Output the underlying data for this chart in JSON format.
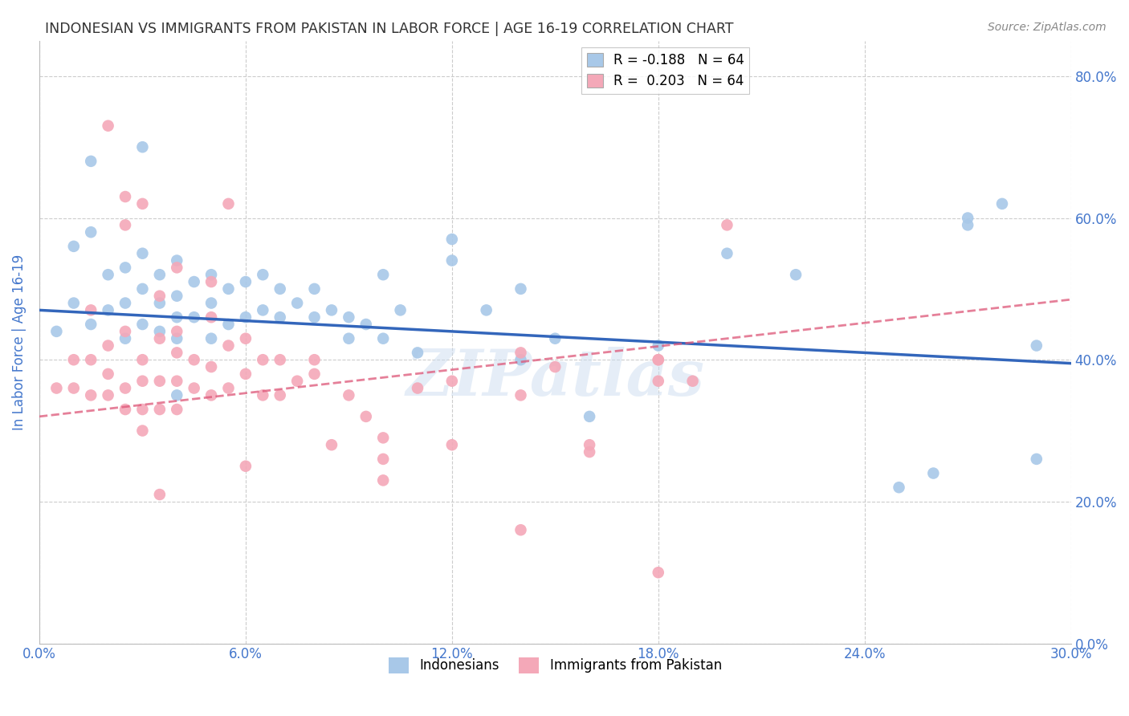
{
  "title": "INDONESIAN VS IMMIGRANTS FROM PAKISTAN IN LABOR FORCE | AGE 16-19 CORRELATION CHART",
  "source": "Source: ZipAtlas.com",
  "ylabel": "In Labor Force | Age 16-19",
  "xlim": [
    0.0,
    0.3
  ],
  "ylim": [
    0.0,
    0.85
  ],
  "yticks": [
    0.0,
    0.2,
    0.4,
    0.6,
    0.8
  ],
  "xticks": [
    0.0,
    0.06,
    0.12,
    0.18,
    0.24,
    0.3
  ],
  "blue_R": -0.188,
  "blue_N": 64,
  "pink_R": 0.203,
  "pink_N": 64,
  "blue_color": "#a8c8e8",
  "pink_color": "#f4a8b8",
  "blue_line_color": "#3366bb",
  "pink_line_color": "#dd5577",
  "grid_color": "#cccccc",
  "title_color": "#333333",
  "axis_label_color": "#4477cc",
  "tick_label_color": "#4477cc",
  "blue_line_x0": 0.0,
  "blue_line_y0": 0.47,
  "blue_line_x1": 0.3,
  "blue_line_y1": 0.395,
  "pink_line_x0": 0.0,
  "pink_line_y0": 0.32,
  "pink_line_x1": 0.3,
  "pink_line_y1": 0.485,
  "blue_scatter_x": [
    0.005,
    0.01,
    0.01,
    0.015,
    0.015,
    0.02,
    0.02,
    0.025,
    0.025,
    0.025,
    0.03,
    0.03,
    0.03,
    0.035,
    0.035,
    0.035,
    0.04,
    0.04,
    0.04,
    0.04,
    0.045,
    0.045,
    0.05,
    0.05,
    0.05,
    0.055,
    0.055,
    0.06,
    0.06,
    0.065,
    0.065,
    0.07,
    0.07,
    0.075,
    0.08,
    0.08,
    0.085,
    0.09,
    0.09,
    0.095,
    0.1,
    0.1,
    0.105,
    0.11,
    0.12,
    0.13,
    0.14,
    0.14,
    0.15,
    0.16,
    0.18,
    0.2,
    0.22,
    0.25,
    0.26,
    0.27,
    0.28,
    0.29,
    0.29,
    0.015,
    0.03,
    0.04,
    0.12,
    0.27
  ],
  "blue_scatter_y": [
    0.44,
    0.48,
    0.56,
    0.45,
    0.58,
    0.52,
    0.47,
    0.53,
    0.48,
    0.43,
    0.55,
    0.5,
    0.45,
    0.52,
    0.48,
    0.44,
    0.54,
    0.49,
    0.46,
    0.43,
    0.51,
    0.46,
    0.52,
    0.48,
    0.43,
    0.5,
    0.45,
    0.51,
    0.46,
    0.52,
    0.47,
    0.5,
    0.46,
    0.48,
    0.5,
    0.46,
    0.47,
    0.46,
    0.43,
    0.45,
    0.52,
    0.43,
    0.47,
    0.41,
    0.54,
    0.47,
    0.5,
    0.4,
    0.43,
    0.32,
    0.42,
    0.55,
    0.52,
    0.22,
    0.24,
    0.59,
    0.62,
    0.26,
    0.42,
    0.68,
    0.7,
    0.35,
    0.57,
    0.6
  ],
  "pink_scatter_x": [
    0.005,
    0.01,
    0.01,
    0.015,
    0.015,
    0.02,
    0.02,
    0.02,
    0.025,
    0.025,
    0.03,
    0.03,
    0.03,
    0.035,
    0.035,
    0.035,
    0.04,
    0.04,
    0.04,
    0.045,
    0.045,
    0.05,
    0.05,
    0.055,
    0.055,
    0.06,
    0.06,
    0.065,
    0.065,
    0.07,
    0.07,
    0.075,
    0.08,
    0.085,
    0.09,
    0.095,
    0.1,
    0.1,
    0.11,
    0.12,
    0.14,
    0.15,
    0.16,
    0.18,
    0.19,
    0.2,
    0.015,
    0.025,
    0.03,
    0.035,
    0.04,
    0.05,
    0.06,
    0.1,
    0.12,
    0.14,
    0.16,
    0.18,
    0.025,
    0.035,
    0.04,
    0.05,
    0.055,
    0.18
  ],
  "pink_scatter_x2": [
    0.02,
    0.025,
    0.03,
    0.08,
    0.14,
    0.18
  ],
  "pink_scatter_y2": [
    0.73,
    0.59,
    0.62,
    0.4,
    0.41,
    0.4
  ],
  "pink_scatter_y": [
    0.36,
    0.4,
    0.36,
    0.4,
    0.35,
    0.42,
    0.38,
    0.35,
    0.44,
    0.36,
    0.4,
    0.37,
    0.33,
    0.43,
    0.37,
    0.33,
    0.41,
    0.37,
    0.33,
    0.4,
    0.36,
    0.39,
    0.35,
    0.42,
    0.36,
    0.43,
    0.38,
    0.4,
    0.35,
    0.4,
    0.35,
    0.37,
    0.38,
    0.28,
    0.35,
    0.32,
    0.29,
    0.26,
    0.36,
    0.28,
    0.35,
    0.39,
    0.27,
    0.37,
    0.37,
    0.59,
    0.47,
    0.33,
    0.3,
    0.21,
    0.53,
    0.51,
    0.25,
    0.23,
    0.37,
    0.16,
    0.28,
    0.1,
    0.63,
    0.49,
    0.44,
    0.46,
    0.62,
    0.4
  ]
}
